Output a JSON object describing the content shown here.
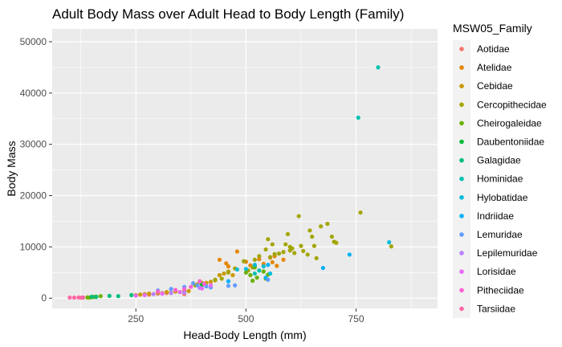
{
  "chart_data": {
    "type": "scatter",
    "title": "Adult Body Mass over Adult Head to Body Length (Family)",
    "xlabel": "Head-Body Length (mm)",
    "ylabel": "Body Mass",
    "xlim": [
      60,
      935
    ],
    "ylim": [
      -2000,
      52500
    ],
    "x_ticks": [
      250,
      500,
      750
    ],
    "y_ticks": [
      0,
      10000,
      20000,
      30000,
      40000,
      50000
    ],
    "x_tick_labels": [
      "250",
      "500",
      "750"
    ],
    "y_tick_labels": [
      "0",
      "10000",
      "20000",
      "30000",
      "40000",
      "50000"
    ],
    "grid": true,
    "legend_position": "right",
    "legend_title": "MSW05_Family",
    "series": [
      {
        "name": "Aotidae",
        "color": "#F8766D",
        "points": [
          [
            300,
            900
          ],
          [
            320,
            1000
          ],
          [
            360,
            800
          ],
          [
            280,
            700
          ]
        ]
      },
      {
        "name": "Atelidae",
        "color": "#E58700",
        "points": [
          [
            440,
            7500
          ],
          [
            455,
            6800
          ],
          [
            460,
            6200
          ],
          [
            480,
            9100
          ],
          [
            500,
            7100
          ],
          [
            520,
            6200
          ],
          [
            540,
            6700
          ],
          [
            560,
            7000
          ],
          [
            570,
            6300
          ],
          [
            585,
            7500
          ],
          [
            510,
            6400
          ],
          [
            530,
            7600
          ],
          [
            555,
            7900
          ],
          [
            565,
            8200
          ]
        ]
      },
      {
        "name": "Cebidae",
        "color": "#C99800",
        "points": [
          [
            250,
            600
          ],
          [
            260,
            700
          ],
          [
            270,
            800
          ],
          [
            280,
            900
          ],
          [
            300,
            1100
          ],
          [
            310,
            1000
          ],
          [
            320,
            1200
          ],
          [
            330,
            1100
          ],
          [
            340,
            1300
          ],
          [
            350,
            1200
          ],
          [
            360,
            1500
          ],
          [
            370,
            1400
          ],
          [
            380,
            2900
          ],
          [
            390,
            2700
          ],
          [
            410,
            3000
          ],
          [
            420,
            3200
          ],
          [
            430,
            3500
          ],
          [
            440,
            4500
          ],
          [
            450,
            4800
          ],
          [
            460,
            5200
          ],
          [
            470,
            4500
          ]
        ]
      },
      {
        "name": "Cercopithecidae",
        "color": "#A3A500",
        "points": [
          [
            385,
            2500
          ],
          [
            400,
            3000
          ],
          [
            430,
            3600
          ],
          [
            445,
            3800
          ],
          [
            460,
            5000
          ],
          [
            475,
            5800
          ],
          [
            495,
            7200
          ],
          [
            505,
            5400
          ],
          [
            515,
            6000
          ],
          [
            520,
            7500
          ],
          [
            530,
            8200
          ],
          [
            545,
            9500
          ],
          [
            550,
            11500
          ],
          [
            560,
            10500
          ],
          [
            565,
            8600
          ],
          [
            575,
            8700
          ],
          [
            585,
            9000
          ],
          [
            590,
            10500
          ],
          [
            595,
            12500
          ],
          [
            600,
            10000
          ],
          [
            605,
            9700
          ],
          [
            610,
            8800
          ],
          [
            620,
            16000
          ],
          [
            625,
            10200
          ],
          [
            630,
            9200
          ],
          [
            645,
            13200
          ],
          [
            650,
            12000
          ],
          [
            655,
            10200
          ],
          [
            660,
            7800
          ],
          [
            670,
            14000
          ],
          [
            685,
            14500
          ],
          [
            695,
            12000
          ],
          [
            705,
            10800
          ],
          [
            760,
            16700
          ],
          [
            830,
            10100
          ],
          [
            600,
            9300
          ],
          [
            555,
            8000
          ],
          [
            640,
            8500
          ],
          [
            700,
            11000
          ]
        ]
      },
      {
        "name": "Cheirogaleidae",
        "color": "#6BB100",
        "points": [
          [
            130,
            100
          ],
          [
            140,
            150
          ],
          [
            150,
            200
          ],
          [
            160,
            300
          ],
          [
            170,
            400
          ],
          [
            145,
            120
          ],
          [
            155,
            250
          ],
          [
            525,
            4000
          ],
          [
            545,
            3800
          ],
          [
            515,
            3400
          ],
          [
            500,
            5000
          ],
          [
            510,
            4500
          ],
          [
            520,
            6000
          ],
          [
            540,
            5200
          ],
          [
            550,
            4600
          ]
        ]
      },
      {
        "name": "Daubentoniidae",
        "color": "#00BA38",
        "points": [
          [
            400,
            2600
          ]
        ]
      },
      {
        "name": "Galagidae",
        "color": "#00BF7D",
        "points": [
          [
            150,
            300
          ],
          [
            160,
            250
          ],
          [
            210,
            400
          ],
          [
            240,
            600
          ],
          [
            190,
            450
          ]
        ]
      },
      {
        "name": "Hominidae",
        "color": "#00C0AF",
        "points": [
          [
            800,
            45000
          ],
          [
            755,
            35200
          ],
          [
            520,
            4800
          ],
          [
            530,
            5400
          ]
        ]
      },
      {
        "name": "Hylobatidae",
        "color": "#00BCD8",
        "points": [
          [
            480,
            5600
          ],
          [
            500,
            5700
          ],
          [
            520,
            6500
          ],
          [
            540,
            6200
          ],
          [
            555,
            4800
          ],
          [
            825,
            10900
          ]
        ]
      },
      {
        "name": "Indriidae",
        "color": "#00B0F6",
        "points": [
          [
            460,
            3300
          ],
          [
            545,
            4000
          ],
          [
            675,
            5900
          ],
          [
            735,
            8500
          ],
          [
            550,
            6500
          ]
        ]
      },
      {
        "name": "Lemuridae",
        "color": "#619CFF",
        "points": [
          [
            300,
            1500
          ],
          [
            330,
            1800
          ],
          [
            360,
            2200
          ],
          [
            390,
            2500
          ],
          [
            410,
            2300
          ],
          [
            460,
            2400
          ],
          [
            475,
            2500
          ],
          [
            550,
            3600
          ],
          [
            380,
            2900
          ],
          [
            420,
            2100
          ]
        ]
      },
      {
        "name": "Lepilemuridae",
        "color": "#B983FF",
        "points": [
          [
            290,
            800
          ],
          [
            310,
            900
          ],
          [
            330,
            1000
          ],
          [
            360,
            1100
          ],
          [
            395,
            2000
          ]
        ]
      },
      {
        "name": "Lorisidae",
        "color": "#E76BF3",
        "points": [
          [
            250,
            500
          ],
          [
            270,
            600
          ],
          [
            310,
            900
          ],
          [
            350,
            1200
          ],
          [
            400,
            1900
          ],
          [
            420,
            2500
          ]
        ]
      },
      {
        "name": "Pitheciidae",
        "color": "#FD61D1",
        "points": [
          [
            300,
            1300
          ],
          [
            340,
            1600
          ],
          [
            360,
            1800
          ],
          [
            375,
            2200
          ],
          [
            395,
            3300
          ],
          [
            405,
            2800
          ]
        ]
      },
      {
        "name": "Tarsiidae",
        "color": "#FF67A4",
        "points": [
          [
            100,
            120
          ],
          [
            110,
            110
          ],
          [
            120,
            140
          ],
          [
            130,
            130
          ],
          [
            125,
            100
          ]
        ]
      }
    ]
  }
}
